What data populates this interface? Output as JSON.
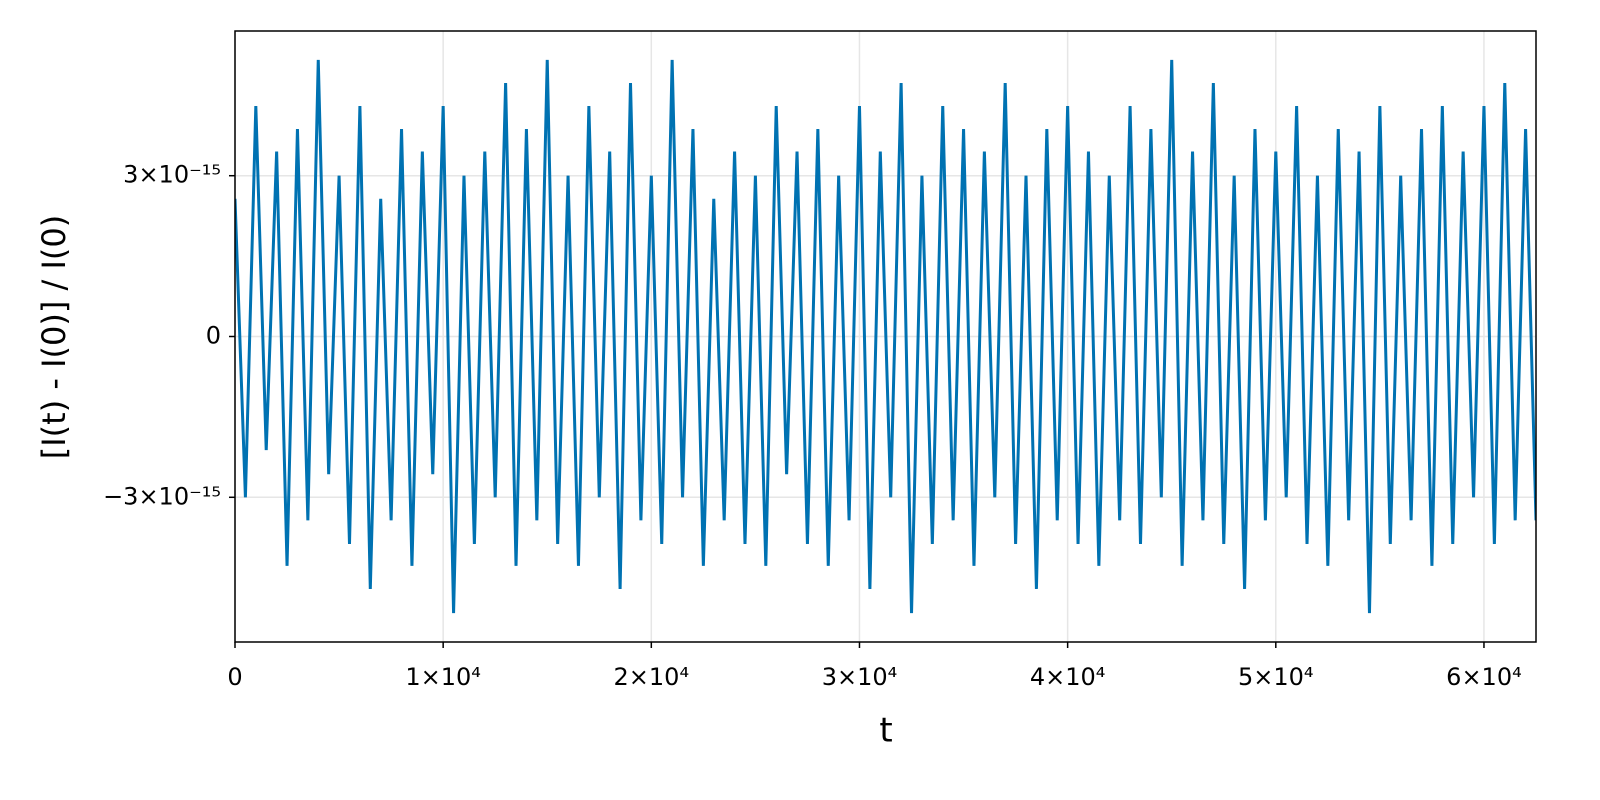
{
  "chart_data": {
    "type": "line",
    "xlabel": "t",
    "ylabel": "[I(t) - I(0)] / I(0)",
    "x": [
      0,
      500,
      1000,
      1500,
      2000,
      2500,
      3000,
      3500,
      4000,
      4500,
      5000,
      5500,
      6000,
      6500,
      7000,
      7500,
      8000,
      8500,
      9000,
      9500,
      10000,
      10500,
      11000,
      11500,
      12000,
      12500,
      13000,
      13500,
      14000,
      14500,
      15000,
      15500,
      16000,
      16500,
      17000,
      17500,
      18000,
      18500,
      19000,
      19500,
      20000,
      20500,
      21000,
      21500,
      22000,
      22500,
      23000,
      23500,
      24000,
      24500,
      25000,
      25500,
      26000,
      26500,
      27000,
      27500,
      28000,
      28500,
      29000,
      29500,
      30000,
      30500,
      31000,
      31500,
      32000,
      32500,
      33000,
      33500,
      34000,
      34500,
      35000,
      35500,
      36000,
      36500,
      37000,
      37500,
      38000,
      38500,
      39000,
      39500,
      40000,
      40500,
      41000,
      41500,
      42000,
      42500,
      43000,
      43500,
      44000,
      44500,
      45000,
      45500,
      46000,
      46500,
      47000,
      47500,
      48000,
      48500,
      49000,
      49500,
      50000,
      50500,
      51000,
      51500,
      52000,
      52500,
      53000,
      53500,
      54000,
      54500,
      55000,
      55500,
      56000,
      56500,
      57000,
      57500,
      58000,
      58500,
      59000,
      59500,
      60000,
      60500,
      61000,
      61500,
      62000,
      62500
    ],
    "series": [
      {
        "color": "#0072b2",
        "values": [
          2.57e-15,
          -3e-15,
          4.3e-15,
          -2.12e-15,
          3.45e-15,
          -4.28e-15,
          3.87e-15,
          -3.43e-15,
          5.16e-15,
          -2.57e-15,
          3e-15,
          -3.87e-15,
          4.3e-15,
          -4.71e-15,
          2.57e-15,
          -3.43e-15,
          3.87e-15,
          -4.28e-15,
          3.45e-15,
          -2.57e-15,
          4.3e-15,
          -5.16e-15,
          3e-15,
          -3.87e-15,
          3.45e-15,
          -3e-15,
          4.73e-15,
          -4.28e-15,
          3.87e-15,
          -3.43e-15,
          5.16e-15,
          -3.87e-15,
          3e-15,
          -4.28e-15,
          4.3e-15,
          -3e-15,
          3.45e-15,
          -4.71e-15,
          4.73e-15,
          -3.43e-15,
          3e-15,
          -3.87e-15,
          5.16e-15,
          -3e-15,
          3.87e-15,
          -4.28e-15,
          2.57e-15,
          -3.43e-15,
          3.45e-15,
          -3.87e-15,
          3e-15,
          -4.28e-15,
          4.3e-15,
          -2.57e-15,
          3.45e-15,
          -3.87e-15,
          3.87e-15,
          -4.28e-15,
          3e-15,
          -3.43e-15,
          4.3e-15,
          -4.71e-15,
          3.45e-15,
          -3e-15,
          4.73e-15,
          -5.16e-15,
          3e-15,
          -3.87e-15,
          4.3e-15,
          -3.43e-15,
          3.87e-15,
          -4.28e-15,
          3.45e-15,
          -3e-15,
          4.73e-15,
          -3.87e-15,
          3e-15,
          -4.71e-15,
          3.87e-15,
          -3.43e-15,
          4.3e-15,
          -3.87e-15,
          3.45e-15,
          -4.28e-15,
          3e-15,
          -3.43e-15,
          4.3e-15,
          -3.87e-15,
          3.87e-15,
          -3e-15,
          5.16e-15,
          -4.28e-15,
          3.45e-15,
          -3.43e-15,
          4.73e-15,
          -3.87e-15,
          3e-15,
          -4.71e-15,
          3.87e-15,
          -3.43e-15,
          3.45e-15,
          -3e-15,
          4.3e-15,
          -3.87e-15,
          3e-15,
          -4.28e-15,
          3.87e-15,
          -3.43e-15,
          3.45e-15,
          -5.16e-15,
          4.3e-15,
          -3.87e-15,
          3e-15,
          -3.43e-15,
          3.87e-15,
          -4.28e-15,
          4.3e-15,
          -3.87e-15,
          3.45e-15,
          -3e-15,
          4.3e-15,
          -3.87e-15,
          4.73e-15,
          -3.43e-15,
          3.87e-15,
          -3.43e-15
        ]
      }
    ],
    "xlim": [
      0,
      62500
    ],
    "ylim": [
      -5.7e-15,
      5.7e-15
    ],
    "xticks": [
      0,
      {
        "value": 10000,
        "label": "1×10⁴"
      },
      {
        "value": 20000,
        "label": "2×10⁴"
      },
      {
        "value": 30000,
        "label": "3×10⁴"
      },
      {
        "value": 40000,
        "label": "4×10⁴"
      },
      {
        "value": 50000,
        "label": "5×10⁴"
      },
      {
        "value": 60000,
        "label": "6×10⁴"
      }
    ],
    "yticks": [
      {
        "value": -3e-15,
        "label": "−3×10⁻¹⁵"
      },
      0,
      {
        "value": 3e-15,
        "label": "3×10⁻¹⁵"
      }
    ],
    "grid": true
  }
}
